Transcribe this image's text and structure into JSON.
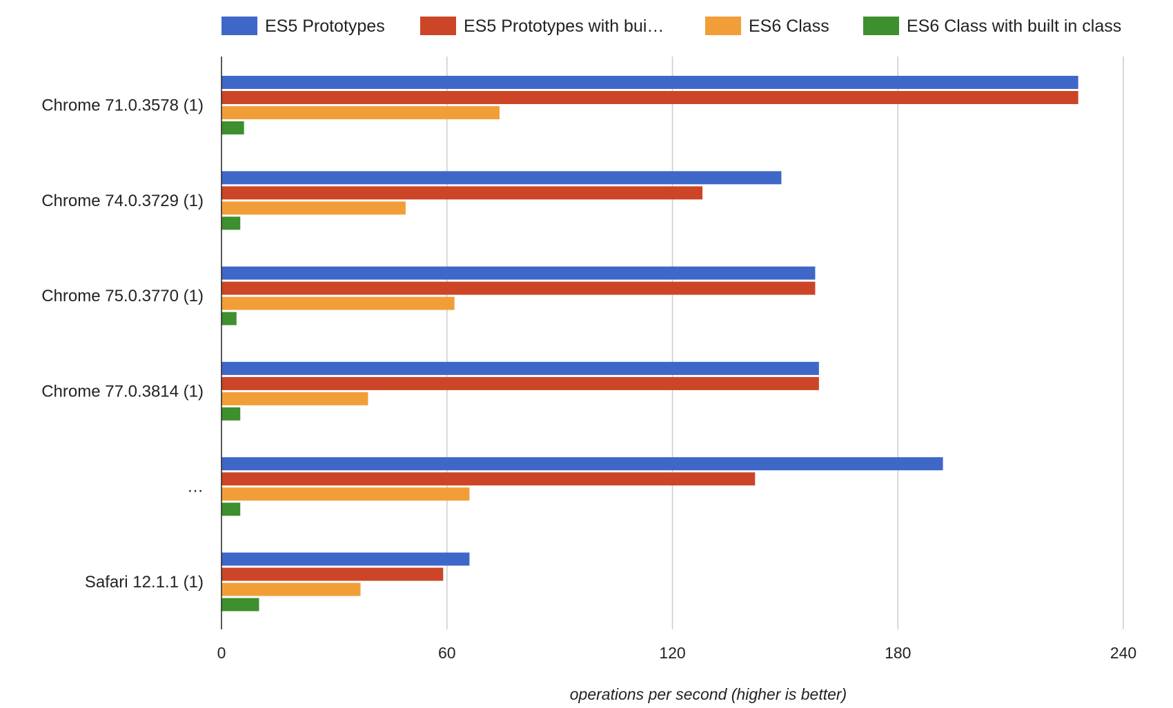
{
  "chart_data": {
    "type": "bar",
    "orientation": "horizontal",
    "categories": [
      "Chrome 71.0.3578 (1)",
      "Chrome 74.0.3729 (1)",
      "Chrome 75.0.3770 (1)",
      "Chrome 77.0.3814 (1)",
      "…",
      "Safari 12.1.1 (1)"
    ],
    "series": [
      {
        "name": "ES5 Prototypes",
        "color": "#3e67c8",
        "values": [
          228,
          149,
          158,
          159,
          192,
          66
        ]
      },
      {
        "name": "ES5 Prototypes with bui…",
        "color": "#cc4527",
        "values": [
          228,
          128,
          158,
          159,
          142,
          59
        ]
      },
      {
        "name": "ES6 Class",
        "color": "#f29e38",
        "values": [
          74,
          49,
          62,
          39,
          66,
          37
        ]
      },
      {
        "name": "ES6 Class with built in class",
        "color": "#3e8f2e",
        "values": [
          6,
          5,
          4,
          5,
          5,
          10
        ]
      }
    ],
    "title": "",
    "xlabel": "operations per second (higher is better)",
    "ylabel": "",
    "xlim": [
      0,
      240
    ],
    "xticks": [
      "0",
      "60",
      "120",
      "180",
      "240"
    ],
    "grid": true,
    "legend_position": "top"
  }
}
